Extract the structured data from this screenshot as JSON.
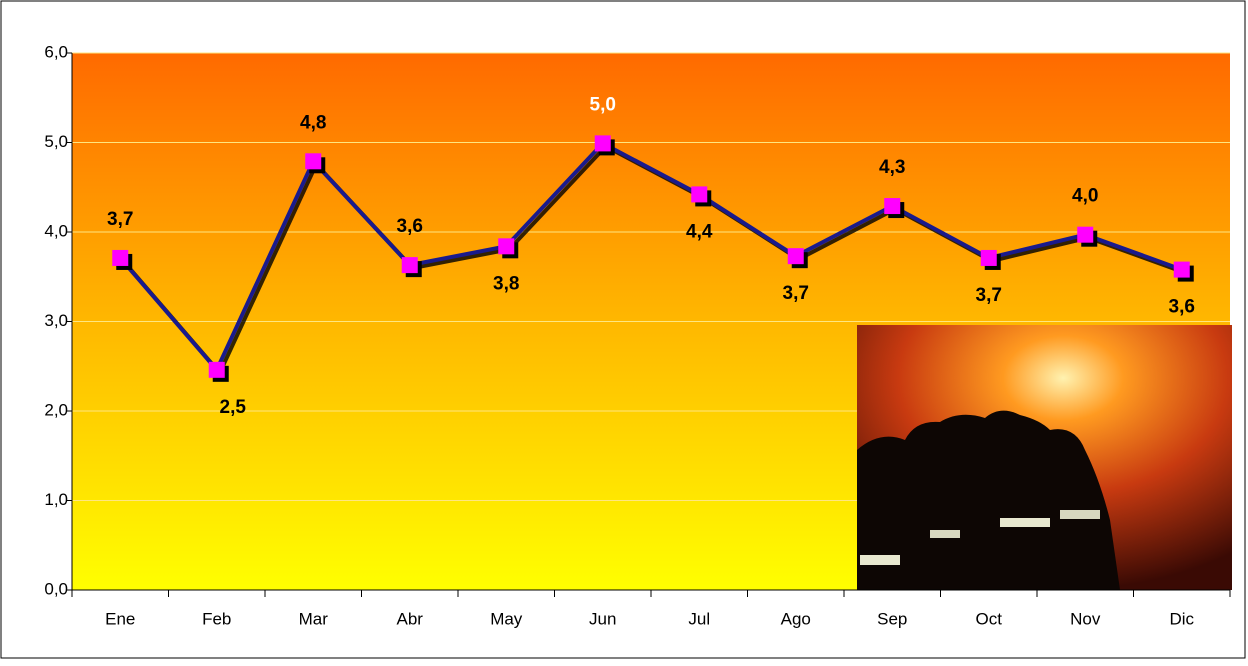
{
  "chart_data": {
    "type": "line",
    "categories": [
      "Ene",
      "Feb",
      "Mar",
      "Abr",
      "May",
      "Jun",
      "Jul",
      "Ago",
      "Sep",
      "Oct",
      "Nov",
      "Dic"
    ],
    "series": [
      {
        "color": "#1a1a8c",
        "marker_color": "#ff00ff",
        "values": [
          3.71,
          2.46,
          4.79,
          3.63,
          3.84,
          4.99,
          4.42,
          3.73,
          4.29,
          3.71,
          3.97,
          3.58
        ],
        "value_labels": [
          "3,7",
          "2,5",
          "4,8",
          "3,6",
          "3,8",
          "5,0",
          "4,4",
          "3,7",
          "4,3",
          "3,7",
          "4,0",
          "3,6"
        ]
      }
    ],
    "ylim": [
      0,
      6
    ],
    "yticks": [
      {
        "value": 0,
        "label": "0,0"
      },
      {
        "value": 1,
        "label": "1,0"
      },
      {
        "value": 2,
        "label": "2,0"
      },
      {
        "value": 3,
        "label": "3,0"
      },
      {
        "value": 4,
        "label": "4,0"
      },
      {
        "value": 5,
        "label": "5,0"
      },
      {
        "value": 6,
        "label": "6,0"
      }
    ],
    "grid": true
  }
}
